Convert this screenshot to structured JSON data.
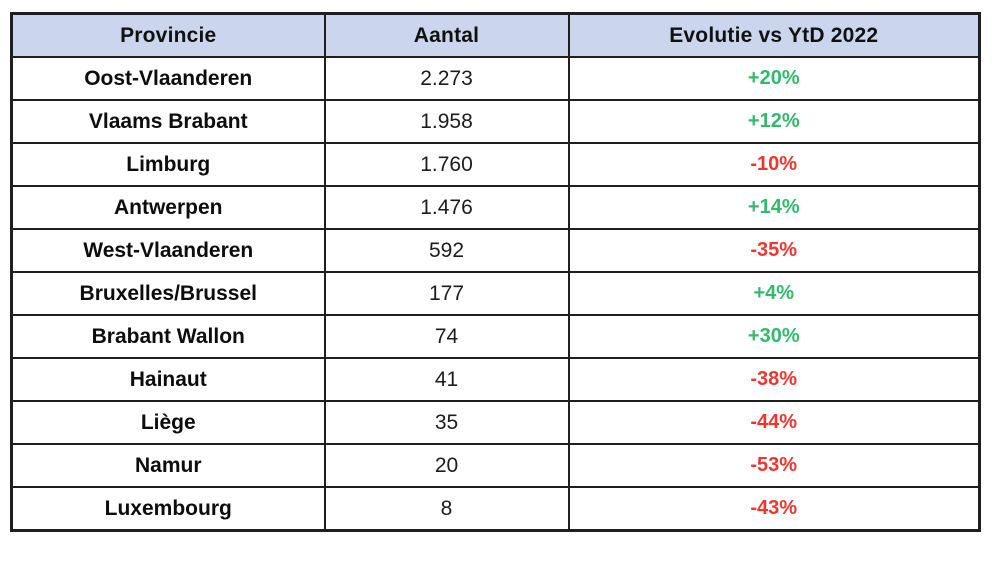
{
  "colors": {
    "header_bg": "#cbd6ee",
    "positive_text": "#33b96b",
    "negative_text": "#ee3530",
    "border": "#1f1f1f",
    "cell_bg": "#ffffff"
  },
  "chart_data": {
    "type": "table",
    "columns": [
      "Provincie",
      "Aantal",
      "Evolutie vs YtD 2022"
    ],
    "rows": [
      {
        "provincie": "Oost-Vlaanderen",
        "aantal": "2.273",
        "aantal_value": 2273,
        "evolutie": "+20%",
        "evolutie_pct": 20
      },
      {
        "provincie": "Vlaams Brabant",
        "aantal": "1.958",
        "aantal_value": 1958,
        "evolutie": "+12%",
        "evolutie_pct": 12
      },
      {
        "provincie": "Limburg",
        "aantal": "1.760",
        "aantal_value": 1760,
        "evolutie": "-10%",
        "evolutie_pct": -10
      },
      {
        "provincie": "Antwerpen",
        "aantal": "1.476",
        "aantal_value": 1476,
        "evolutie": "+14%",
        "evolutie_pct": 14
      },
      {
        "provincie": "West-Vlaanderen",
        "aantal": "592",
        "aantal_value": 592,
        "evolutie": "-35%",
        "evolutie_pct": -35
      },
      {
        "provincie": "Bruxelles/Brussel",
        "aantal": "177",
        "aantal_value": 177,
        "evolutie": "+4%",
        "evolutie_pct": 4
      },
      {
        "provincie": "Brabant Wallon",
        "aantal": "74",
        "aantal_value": 74,
        "evolutie": "+30%",
        "evolutie_pct": 30
      },
      {
        "provincie": "Hainaut",
        "aantal": "41",
        "aantal_value": 41,
        "evolutie": "-38%",
        "evolutie_pct": -38
      },
      {
        "provincie": "Liège",
        "aantal": "35",
        "aantal_value": 35,
        "evolutie": "-44%",
        "evolutie_pct": -44
      },
      {
        "provincie": "Namur",
        "aantal": "20",
        "aantal_value": 20,
        "evolutie": "-53%",
        "evolutie_pct": -53
      },
      {
        "provincie": "Luxembourg",
        "aantal": "8",
        "aantal_value": 8,
        "evolutie": "-43%",
        "evolutie_pct": -43
      }
    ]
  }
}
